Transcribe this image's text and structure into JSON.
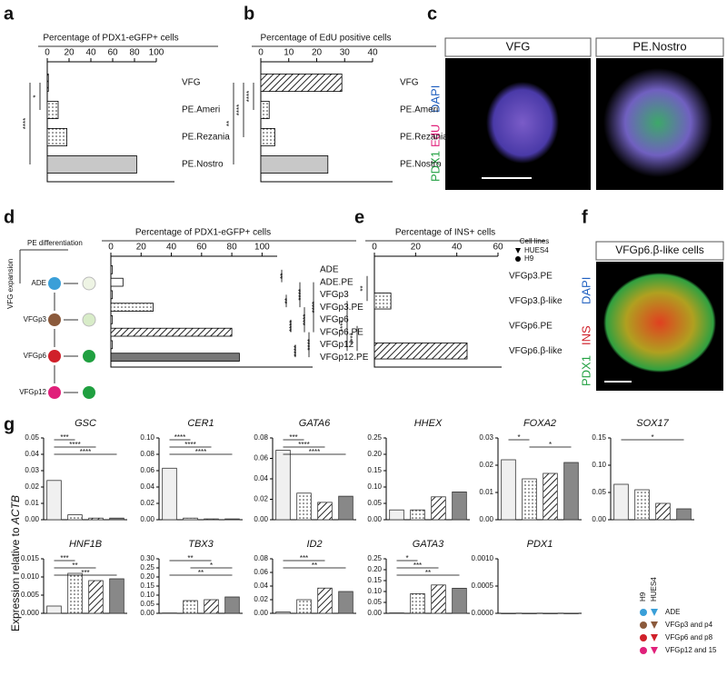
{
  "panel_letters": [
    "a",
    "b",
    "c",
    "d",
    "e",
    "f",
    "g"
  ],
  "panel_c": {
    "headers": [
      "VFG",
      "PE.Nostro"
    ],
    "stains": [
      "PDX1",
      "EdU",
      "DAPI"
    ]
  },
  "panel_f": {
    "header": "VFGp6.β-like cells",
    "stains": [
      "PDX1",
      "INS",
      "DAPI"
    ]
  },
  "schematic": {
    "pe_label": "PE differentiation",
    "vfg_label": "VFG expansion",
    "stages": [
      "ADE",
      "VFGp3",
      "VFGp6",
      "VFGp12"
    ]
  },
  "g_axis_label": {
    "text": "Expression relative to",
    "gene": "ACTB"
  },
  "g_legend": {
    "lines": [
      "H9",
      "HUES4"
    ],
    "entries": [
      {
        "name": "ADE",
        "color": "#3a9fd8"
      },
      {
        "name": "VFGp3 and p4",
        "color": "#8b5a3c"
      },
      {
        "name": "VFGp6 and p8",
        "color": "#d0202a"
      },
      {
        "name": "VFGp12 and 15",
        "color": "#e0207a"
      }
    ]
  },
  "chart_data": [
    {
      "type": "hbar",
      "title": "Percentage of PDX1-eGFP+ cells",
      "categories": [
        "VFG",
        "PE.Ameri",
        "PE.Rezania",
        "PE.Nostro"
      ],
      "values": [
        1,
        10,
        18,
        82
      ],
      "xlim": [
        0,
        100
      ],
      "xticks": [
        0,
        20,
        40,
        60,
        80,
        100
      ],
      "significance": [
        {
          "label": "*",
          "pair": [
            0,
            1
          ]
        },
        {
          "label": "****",
          "pair": [
            0,
            3
          ]
        }
      ]
    },
    {
      "type": "hbar",
      "title": "Percentage of EdU positive cells",
      "categories": [
        "VFG",
        "PE.Ameri",
        "PE.Rezania",
        "PE.Nostro"
      ],
      "values": [
        29,
        3,
        5,
        24
      ],
      "xlim": [
        0,
        40
      ],
      "xticks": [
        0,
        10,
        20,
        30,
        40
      ],
      "significance": [
        {
          "label": "****",
          "pair": [
            0,
            1
          ]
        },
        {
          "label": "****",
          "pair": [
            0,
            2
          ]
        },
        {
          "label": "**",
          "pair": [
            0,
            3
          ]
        }
      ]
    },
    {
      "type": "hbar",
      "title": "Percentage of PDX1-eGFP+ cells",
      "categories": [
        "ADE",
        "ADE.PE",
        "VFGp3",
        "VFGp3.PE",
        "VFGp6",
        "VFGp6.PE",
        "VFGp12",
        "VFGp12.PE"
      ],
      "values": [
        1,
        8,
        1,
        28,
        1,
        80,
        1,
        85
      ],
      "xlim": [
        0,
        110
      ],
      "xticks": [
        0,
        20,
        40,
        60,
        80,
        100
      ],
      "significance": [
        {
          "label": "**",
          "pair": [
            0,
            1
          ]
        },
        {
          "label": "**",
          "pair": [
            2,
            3
          ]
        },
        {
          "label": "****",
          "pair": [
            4,
            5
          ]
        },
        {
          "label": "****",
          "pair": [
            6,
            7
          ]
        },
        {
          "label": "****",
          "pair": [
            1,
            3
          ]
        },
        {
          "label": "****",
          "pair": [
            3,
            5
          ]
        },
        {
          "label": "****",
          "pair": [
            5,
            7
          ]
        },
        {
          "label": "****",
          "pair": [
            1,
            5
          ]
        }
      ]
    },
    {
      "type": "hbar",
      "title": "Percentage of INS+ cells",
      "categories": [
        "VFGp3.PE",
        "VFGp3.β-like",
        "VFGp6.PE",
        "VFGp6.β-like"
      ],
      "values": [
        0,
        8,
        0,
        45
      ],
      "xlim": [
        0,
        60
      ],
      "xticks": [
        0,
        20,
        40,
        60
      ],
      "significance": [
        {
          "label": "**",
          "pair": [
            0,
            1
          ]
        },
        {
          "label": "****",
          "pair": [
            2,
            3
          ]
        },
        {
          "label": "****",
          "pair": [
            1,
            3
          ]
        }
      ],
      "legend": {
        "title": "Cell lines",
        "entries": [
          "HUES4",
          "H9"
        ]
      }
    },
    {
      "type": "vbar",
      "title": "GSC",
      "values": [
        0.024,
        0.003,
        0.001,
        0.001
      ],
      "ylim": [
        0,
        0.05
      ],
      "yticks": [
        {
          "value": 0,
          "label": "0.00"
        },
        0.01,
        0.02,
        0.03,
        0.04,
        0.05
      ],
      "significance": [
        {
          "label": "***",
          "pair": [
            0,
            1
          ]
        },
        {
          "label": "****",
          "pair": [
            0,
            2
          ]
        },
        {
          "label": "****",
          "pair": [
            0,
            3
          ]
        }
      ]
    },
    {
      "type": "vbar",
      "title": "CER1",
      "values": [
        0.063,
        0.002,
        0.001,
        0.001
      ],
      "ylim": [
        0,
        0.1
      ],
      "yticks": [
        {
          "value": 0,
          "label": "0.00"
        },
        0.02,
        0.04,
        0.06,
        0.08,
        {
          "value": 0.1,
          "label": "0.10"
        }
      ],
      "significance": [
        {
          "label": "****",
          "pair": [
            0,
            1
          ]
        },
        {
          "label": "****",
          "pair": [
            0,
            2
          ]
        },
        {
          "label": "****",
          "pair": [
            0,
            3
          ]
        }
      ]
    },
    {
      "type": "vbar",
      "title": "GATA6",
      "values": [
        0.068,
        0.026,
        0.017,
        0.023
      ],
      "ylim": [
        0,
        0.08
      ],
      "yticks": [
        {
          "value": 0,
          "label": "0.00"
        },
        0.02,
        0.04,
        0.06,
        0.08
      ],
      "significance": [
        {
          "label": "***",
          "pair": [
            0,
            1
          ]
        },
        {
          "label": "****",
          "pair": [
            0,
            2
          ]
        },
        {
          "label": "****",
          "pair": [
            0,
            3
          ]
        }
      ]
    },
    {
      "type": "vbar",
      "title": "HHEX",
      "values": [
        0.03,
        0.03,
        0.07,
        0.085
      ],
      "ylim": [
        0,
        0.25
      ],
      "yticks": [
        {
          "value": 0,
          "label": "0.00"
        },
        0.05,
        {
          "value": 0.1,
          "label": "0.10"
        },
        0.15,
        {
          "value": 0.2,
          "label": "0.20"
        },
        0.25
      ],
      "significance": []
    },
    {
      "type": "vbar",
      "title": "FOXA2",
      "values": [
        0.022,
        0.015,
        0.017,
        0.021
      ],
      "ylim": [
        0,
        0.03
      ],
      "yticks": [
        {
          "value": 0,
          "label": "0.00"
        },
        0.01,
        0.02,
        0.03
      ],
      "significance": [
        {
          "label": "*",
          "pair": [
            0,
            1
          ]
        },
        {
          "label": "*",
          "pair": [
            1,
            3
          ]
        }
      ]
    },
    {
      "type": "vbar",
      "title": "SOX17",
      "values": [
        0.065,
        0.055,
        0.03,
        0.02
      ],
      "ylim": [
        0,
        0.15
      ],
      "yticks": [
        {
          "value": 0,
          "label": "0.00"
        },
        0.05,
        {
          "value": 0.1,
          "label": "0.10"
        },
        0.15
      ],
      "significance": [
        {
          "label": "*",
          "pair": [
            0,
            3
          ]
        }
      ]
    },
    {
      "type": "vbar",
      "title": "HNF1B",
      "values": [
        0.002,
        0.011,
        0.009,
        0.0095
      ],
      "ylim": [
        0,
        0.015
      ],
      "yticks": [
        {
          "value": 0,
          "label": "0.000"
        },
        0.005,
        {
          "value": 0.01,
          "label": "0.010"
        },
        0.015
      ],
      "significance": [
        {
          "label": "***",
          "pair": [
            0,
            1
          ]
        },
        {
          "label": "**",
          "pair": [
            0,
            2
          ]
        },
        {
          "label": "***",
          "pair": [
            0,
            3
          ]
        }
      ]
    },
    {
      "type": "vbar",
      "title": "TBX3",
      "values": [
        0.002,
        0.07,
        0.075,
        0.09
      ],
      "ylim": [
        0,
        0.3
      ],
      "yticks": [
        {
          "value": 0,
          "label": "0.00"
        },
        0.05,
        {
          "value": 0.1,
          "label": "0.10"
        },
        0.15,
        {
          "value": 0.2,
          "label": "0.20"
        },
        0.25,
        {
          "value": 0.3,
          "label": "0.30"
        }
      ],
      "significance": [
        {
          "label": "**",
          "pair": [
            0,
            2
          ]
        },
        {
          "label": "*",
          "pair": [
            1,
            3
          ]
        },
        {
          "label": "**",
          "pair": [
            0,
            3
          ]
        }
      ]
    },
    {
      "type": "vbar",
      "title": "ID2",
      "values": [
        0.002,
        0.02,
        0.037,
        0.032
      ],
      "ylim": [
        0,
        0.08
      ],
      "yticks": [
        {
          "value": 0,
          "label": "0.00"
        },
        0.02,
        0.04,
        0.06,
        0.08
      ],
      "significance": [
        {
          "label": "***",
          "pair": [
            0,
            2
          ]
        },
        {
          "label": "**",
          "pair": [
            0,
            3
          ]
        }
      ]
    },
    {
      "type": "vbar",
      "title": "GATA3",
      "values": [
        0.002,
        0.09,
        0.13,
        0.115
      ],
      "ylim": [
        0,
        0.25
      ],
      "yticks": [
        {
          "value": 0,
          "label": "0.00"
        },
        0.05,
        {
          "value": 0.1,
          "label": "0.10"
        },
        0.15,
        {
          "value": 0.2,
          "label": "0.20"
        },
        0.25
      ],
      "significance": [
        {
          "label": "*",
          "pair": [
            0,
            1
          ]
        },
        {
          "label": "***",
          "pair": [
            0,
            2
          ]
        },
        {
          "label": "**",
          "pair": [
            0,
            3
          ]
        }
      ]
    },
    {
      "type": "vbar",
      "title": "PDX1",
      "values": [
        0,
        0,
        0,
        0
      ],
      "ylim": [
        0,
        0.001
      ],
      "yticks": [
        {
          "value": 0,
          "label": "0.0000"
        },
        0.0005,
        {
          "value": 0.001,
          "label": "0.0010"
        }
      ],
      "significance": []
    }
  ]
}
